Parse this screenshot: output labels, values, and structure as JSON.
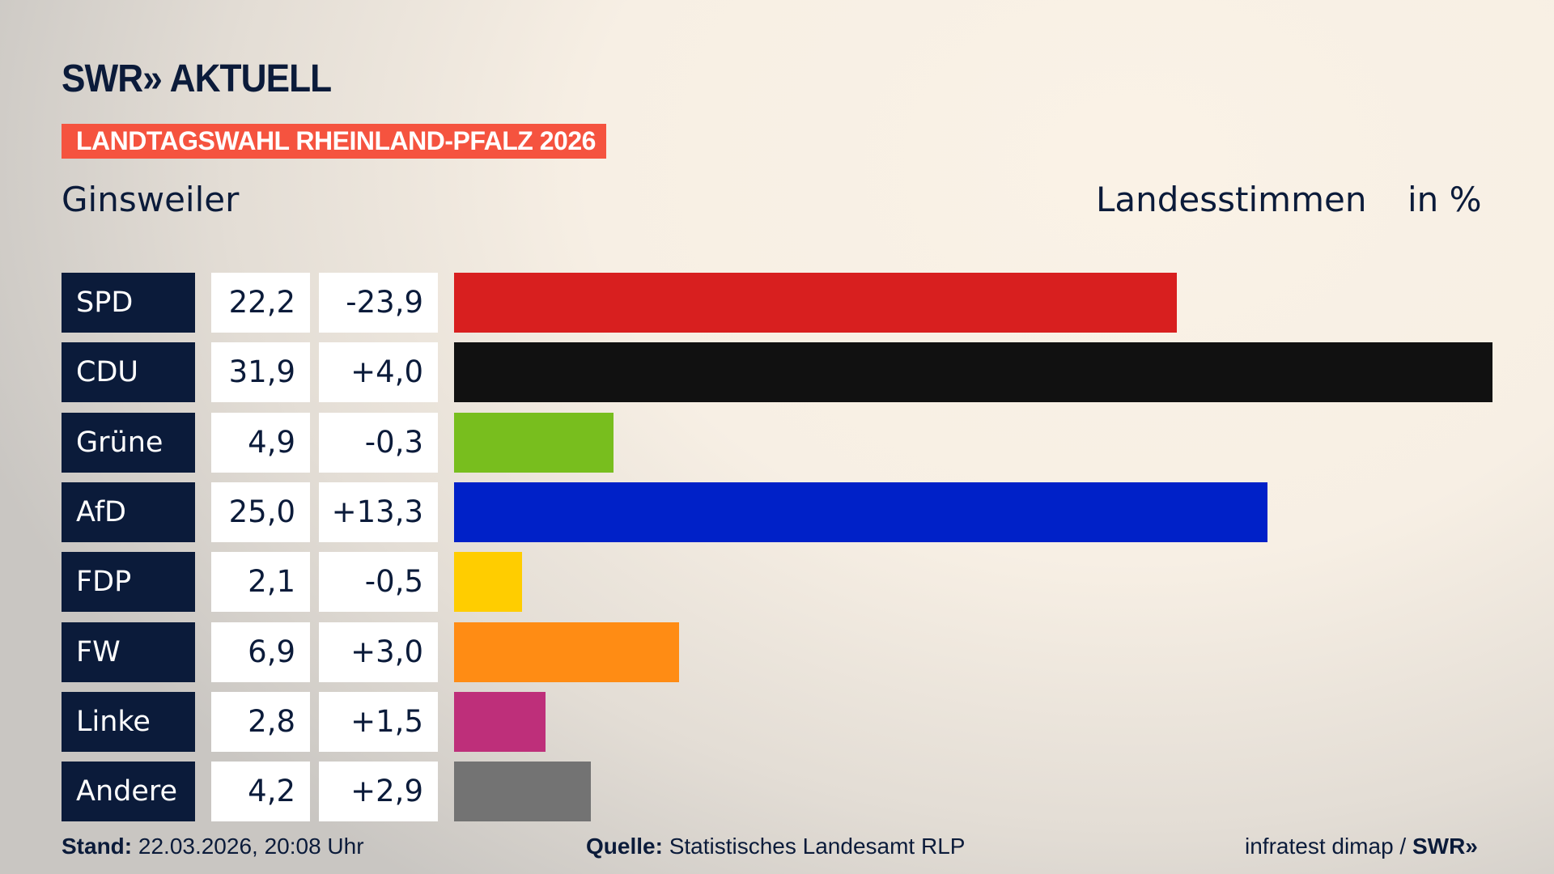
{
  "header": {
    "logo": "SWR» AKTUELL",
    "banner": "LANDTAGSWAHL RHEINLAND-PFALZ 2026",
    "place": "Ginsweiler",
    "measure": "Landesstimmen",
    "unit": "in %"
  },
  "chart_data": {
    "type": "bar",
    "orientation": "horizontal",
    "xlim": [
      0,
      31.9
    ],
    "categories": [
      "SPD",
      "CDU",
      "Grüne",
      "AfD",
      "FDP",
      "FW",
      "Linke",
      "Andere"
    ],
    "values": [
      "22,2",
      "31,9",
      "4,9",
      "25,0",
      "2,1",
      "6,9",
      "2,8",
      "4,2"
    ],
    "numeric_values": [
      22.2,
      31.9,
      4.9,
      25.0,
      2.1,
      6.9,
      2.8,
      4.2
    ],
    "diffs": [
      "-23,9",
      "+4,0",
      "-0,3",
      "+13,3",
      "-0,5",
      "+3,0",
      "+1,5",
      "+2,9"
    ],
    "colors": [
      "#d81f1f",
      "#111111",
      "#78be1e",
      "#0021c8",
      "#ffcd00",
      "#ff8c14",
      "#be2f7a",
      "#737373"
    ]
  },
  "footer": {
    "stand_label": "Stand:",
    "stand": "22.03.2026, 20:08 Uhr",
    "quelle_label": "Quelle:",
    "quelle": "Statistisches Landesamt RLP",
    "credit": "infratest dimap /",
    "credit_logo": "SWR»"
  }
}
